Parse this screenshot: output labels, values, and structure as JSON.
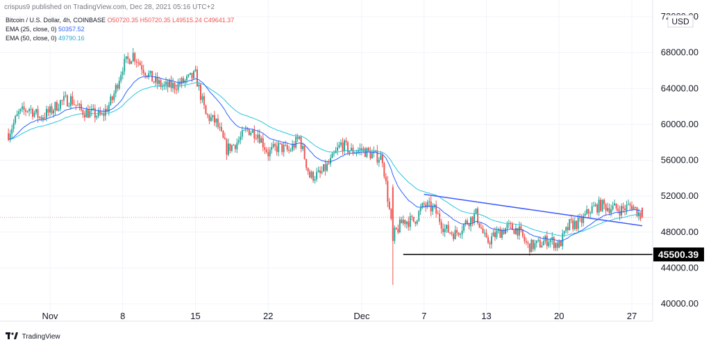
{
  "header": {
    "published": "crispus9 published on TradingView.com, Dec 28, 2021 05:16 UTC+2"
  },
  "legend": {
    "symbol": "Bitcoin / U.S. Dollar, 4h, COINBASE",
    "ohlc": "O50720.35 H50720.35 L49515.24 C49641.37",
    "ema25_label": "EMA (25, close, 0)",
    "ema25_value": "50357.52",
    "ema50_label": "EMA (50, close, 0)",
    "ema50_value": "49790.16"
  },
  "footer": {
    "brand": "TradingView"
  },
  "colors": {
    "up": "#26a69a",
    "down": "#ef5350",
    "ema25": "#2962ff",
    "ema50": "#26c6da",
    "trendline": "#3d5afe",
    "support": "#000000",
    "price_line": "#ef9a9a"
  },
  "chart_data": {
    "type": "candlestick",
    "x_axis": {
      "tick_labels": [
        "Nov",
        "8",
        "15",
        "22",
        "Dec",
        "7",
        "13",
        "20",
        "27"
      ],
      "tick_dates": [
        "2021-11-01",
        "2021-11-08",
        "2021-11-15",
        "2021-11-22",
        "2021-12-01",
        "2021-12-07",
        "2021-12-13",
        "2021-12-20",
        "2021-12-27"
      ]
    },
    "y_axis": {
      "currency": "USD",
      "tick_labels": [
        "40000.00",
        "44000.00",
        "48000.00",
        "52000.00",
        "56000.00",
        "60000.00",
        "64000.00",
        "68000.00",
        "72000.00"
      ],
      "range": [
        39500,
        72000
      ]
    },
    "support_level": {
      "value": 45500.39,
      "label": "45500.39",
      "from": "2021-12-05"
    },
    "trendline": {
      "from": [
        "2021-12-07",
        52200
      ],
      "to": [
        "2021-12-28",
        48700
      ]
    },
    "last_price": 49641.37,
    "anchors": [
      [
        "2021-10-28",
        59000
      ],
      [
        "2021-10-29",
        61200
      ],
      [
        "2021-10-30",
        61800
      ],
      [
        "2021-10-31",
        60800
      ],
      [
        "2021-11-01",
        61400
      ],
      [
        "2021-11-02",
        62500
      ],
      [
        "2021-11-03",
        62800
      ],
      [
        "2021-11-04",
        61500
      ],
      [
        "2021-11-05",
        61200
      ],
      [
        "2021-11-06",
        60900
      ],
      [
        "2021-11-07",
        62800
      ],
      [
        "2021-11-08",
        66500
      ],
      [
        "2021-11-09",
        67800
      ],
      [
        "2021-11-10",
        66200
      ],
      [
        "2021-11-11",
        64800
      ],
      [
        "2021-11-12",
        64200
      ],
      [
        "2021-11-13",
        64300
      ],
      [
        "2021-11-14",
        64800
      ],
      [
        "2021-11-15",
        65500
      ],
      [
        "2021-11-16",
        61000
      ],
      [
        "2021-11-17",
        60200
      ],
      [
        "2021-11-18",
        57200
      ],
      [
        "2021-11-19",
        58000
      ],
      [
        "2021-11-20",
        59400
      ],
      [
        "2021-11-21",
        59000
      ],
      [
        "2021-11-22",
        56800
      ],
      [
        "2021-11-23",
        57500
      ],
      [
        "2021-11-24",
        57000
      ],
      [
        "2021-11-25",
        58500
      ],
      [
        "2021-11-26",
        54200
      ],
      [
        "2021-11-27",
        54400
      ],
      [
        "2021-11-28",
        55800
      ],
      [
        "2021-11-29",
        57800
      ],
      [
        "2021-11-30",
        57000
      ],
      [
        "2021-12-01",
        57200
      ],
      [
        "2021-12-02",
        56600
      ],
      [
        "2021-12-03",
        56200
      ],
      [
        "2021-12-04",
        47500
      ],
      [
        "2021-12-05",
        49300
      ],
      [
        "2021-12-06",
        49200
      ],
      [
        "2021-12-07",
        51000
      ],
      [
        "2021-12-08",
        50500
      ],
      [
        "2021-12-09",
        48300
      ],
      [
        "2021-12-10",
        47800
      ],
      [
        "2021-12-11",
        49000
      ],
      [
        "2021-12-12",
        50000
      ],
      [
        "2021-12-13",
        46800
      ],
      [
        "2021-12-14",
        47800
      ],
      [
        "2021-12-15",
        48500
      ],
      [
        "2021-12-16",
        48300
      ],
      [
        "2021-12-17",
        46400
      ],
      [
        "2021-12-18",
        46600
      ],
      [
        "2021-12-19",
        47200
      ],
      [
        "2021-12-20",
        46500
      ],
      [
        "2021-12-21",
        48800
      ],
      [
        "2021-12-22",
        49000
      ],
      [
        "2021-12-23",
        50500
      ],
      [
        "2021-12-24",
        51000
      ],
      [
        "2021-12-25",
        50700
      ],
      [
        "2021-12-26",
        50500
      ],
      [
        "2021-12-27",
        51000
      ],
      [
        "2021-12-28",
        49641
      ]
    ]
  }
}
